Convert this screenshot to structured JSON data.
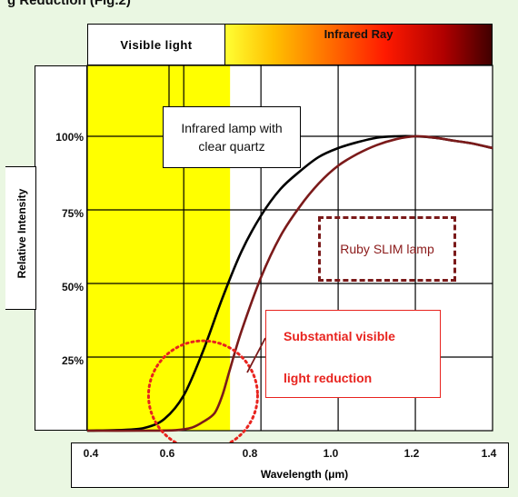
{
  "header": {
    "title": "g Reduction (Fig.2)"
  },
  "bands": {
    "visible_label": "Visible light",
    "infrared_label": "Infrared Ray"
  },
  "annotations": {
    "lamp1": "Infrared lamp with clear quartz",
    "lamp2": "Ruby SLIM lamp",
    "callout_line1": "Substantial visible",
    "callout_line2": "light reduction"
  },
  "colors": {
    "background": "#eaf7e2",
    "visible_band": "#ffff00",
    "lamp1_line": "#000000",
    "lamp2_line": "#7b1a1a",
    "callout": "#e8231e"
  },
  "chart_data": {
    "type": "line",
    "xlabel": "Wavelength (μm)",
    "ylabel": "Relative Intensity",
    "xlim": [
      0.35,
      1.4
    ],
    "ylim": [
      0,
      100
    ],
    "x_ticks": [
      "0.4",
      "0.6",
      "0.8",
      "1.0",
      "1.2",
      "1.4"
    ],
    "y_ticks": [
      "25%",
      "50%",
      "75%",
      "100%"
    ],
    "visible_band": [
      0.35,
      0.72
    ],
    "grid": true,
    "series": [
      {
        "name": "Infrared lamp with clear quartz",
        "color": "#000000",
        "x": [
          0.35,
          0.45,
          0.5,
          0.55,
          0.6,
          0.65,
          0.7,
          0.75,
          0.8,
          0.85,
          0.9,
          0.95,
          1.0,
          1.05,
          1.1,
          1.15,
          1.2,
          1.25,
          1.3,
          1.35,
          1.4
        ],
        "y": [
          0,
          0.3,
          1,
          4,
          12,
          27,
          45,
          61,
          73,
          82,
          88,
          93,
          96,
          98,
          99.5,
          100,
          100,
          99.5,
          98.5,
          97.5,
          96
        ]
      },
      {
        "name": "Ruby SLIM lamp",
        "color": "#7b1a1a",
        "x": [
          0.35,
          0.5,
          0.58,
          0.62,
          0.65,
          0.68,
          0.7,
          0.72,
          0.75,
          0.8,
          0.85,
          0.9,
          0.95,
          1.0,
          1.05,
          1.1,
          1.15,
          1.2,
          1.25,
          1.3,
          1.35,
          1.4
        ],
        "y": [
          0,
          0,
          0.2,
          1,
          3,
          6,
          12,
          21,
          34,
          52,
          66,
          76,
          84,
          90,
          94,
          97,
          99,
          100,
          99.5,
          98.5,
          97.5,
          96
        ]
      }
    ]
  }
}
